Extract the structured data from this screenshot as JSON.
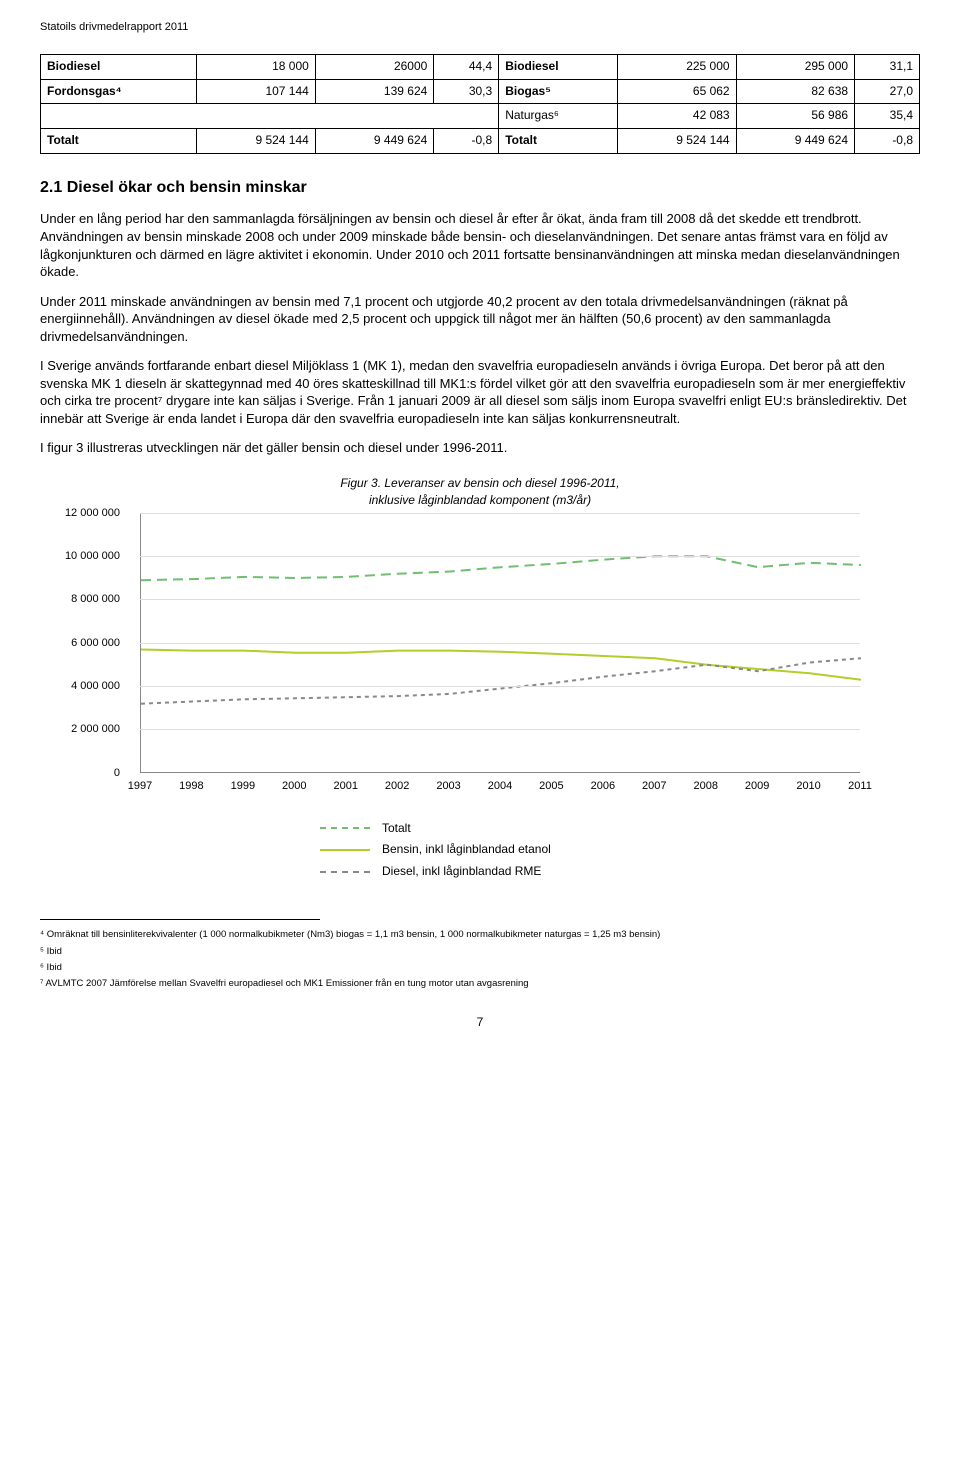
{
  "header": "Statoils drivmedelrapport 2011",
  "table": {
    "rows": [
      {
        "label": "Biodiesel",
        "c1": "18 000",
        "c2": "26000",
        "c3": "44,4",
        "rlabel": "Biodiesel",
        "r1": "225 000",
        "r2": "295 000",
        "r3": "31,1",
        "bold": true
      },
      {
        "label": "Fordonsgas⁴",
        "c1": "107 144",
        "c2": "139 624",
        "c3": "30,3",
        "rlabel": "Biogas⁵",
        "r1": "65 062",
        "r2": "82 638",
        "r3": "27,0",
        "bold": true
      },
      {
        "label": "",
        "c1": "",
        "c2": "",
        "c3": "",
        "rlabel": "Naturgas⁶",
        "r1": "42 083",
        "r2": "56 986",
        "r3": "35,4",
        "bold": false,
        "emptyleft": true
      },
      {
        "label": "Totalt",
        "c1": "9 524 144",
        "c2": "9 449 624",
        "c3": "-0,8",
        "rlabel": "Totalt",
        "r1": "9 524 144",
        "r2": "9 449 624",
        "r3": "-0,8",
        "bold": true
      }
    ]
  },
  "section": {
    "heading": "2.1   Diesel ökar och bensin minskar",
    "p1": "Under en lång period har den sammanlagda försäljningen av bensin och diesel år efter år ökat, ända fram till 2008 då det skedde ett trendbrott. Användningen av bensin minskade 2008 och under 2009 minskade både bensin- och dieselanvändningen. Det senare antas främst vara en följd av lågkonjunkturen och därmed en lägre aktivitet i ekonomin. Under 2010 och 2011 fortsatte bensinanvändningen att minska medan dieselanvändningen ökade.",
    "p2": "Under 2011 minskade användningen av bensin med 7,1 procent och utgjorde 40,2 procent av den totala drivmedelsanvändningen (räknat på energiinnehåll). Användningen av diesel ökade med 2,5 procent och uppgick till något mer än hälften (50,6 procent) av den sammanlagda drivmedelsanvändningen.",
    "p3": "I Sverige används fortfarande enbart diesel Miljöklass 1 (MK 1), medan den svavelfria europadieseln används i övriga Europa. Det beror på att den svenska MK 1 dieseln är skattegynnad med 40 öres skatteskillnad till MK1:s fördel vilket gör att den svavelfria europadieseln som är mer energieffektiv och cirka tre procent⁷ drygare inte kan säljas i Sverige. Från 1 januari 2009 är all diesel som säljs inom Europa svavelfri enligt EU:s bränsledirektiv. Det innebär att Sverige är enda landet i Europa där den svavelfria europadieseln inte kan säljas konkurrensneutralt.",
    "p4": "I figur 3 illustreras utvecklingen när det gäller bensin och diesel under 1996-2011."
  },
  "chart": {
    "title_line1": "Figur 3. Leveranser av bensin och diesel 1996-2011,",
    "title_line2": "inklusive låginblandad komponent (m3/år)",
    "y_ticks": [
      "0",
      "2 000 000",
      "4 000 000",
      "6 000 000",
      "8 000 000",
      "10 000 000",
      "12 000 000"
    ],
    "y_max": 12000000,
    "x_labels": [
      "1997",
      "1998",
      "1999",
      "2000",
      "2001",
      "2002",
      "2003",
      "2004",
      "2005",
      "2006",
      "2007",
      "2008",
      "2009",
      "2010",
      "2011"
    ],
    "series": {
      "totalt": {
        "label": "Totalt",
        "color": "#6fbf6f",
        "dash": "10,6",
        "width": 2,
        "values": [
          8900000,
          8950000,
          9050000,
          9000000,
          9050000,
          9200000,
          9300000,
          9500000,
          9650000,
          9850000,
          10000000,
          10000000,
          9500000,
          9700000,
          9600000
        ]
      },
      "bensin": {
        "label": "Bensin, inkl låginblandad etanol",
        "color": "#b5cc29",
        "dash": "",
        "width": 2,
        "values": [
          5700000,
          5650000,
          5650000,
          5550000,
          5550000,
          5650000,
          5650000,
          5600000,
          5500000,
          5400000,
          5300000,
          5000000,
          4800000,
          4600000,
          4300000
        ]
      },
      "diesel": {
        "label": "Diesel, inkl låginblandad RME",
        "color": "#888888",
        "dash": "4,4",
        "width": 2,
        "values": [
          3200000,
          3300000,
          3400000,
          3450000,
          3500000,
          3550000,
          3650000,
          3900000,
          4150000,
          4450000,
          4700000,
          5000000,
          4700000,
          5100000,
          5300000
        ]
      }
    }
  },
  "footnotes": {
    "f4": "⁴ Omräknat till bensinliterekvivalenter (1 000 normalkubikmeter (Nm3) biogas = 1,1 m3 bensin, 1 000 normalkubikmeter naturgas = 1,25 m3 bensin)",
    "f5": "⁵ Ibid",
    "f6": "⁶ Ibid",
    "f7": "⁷ AVLMTC 2007 Jämförelse mellan Svavelfri europadiesel och MK1 Emissioner från en tung motor utan avgasrening"
  },
  "pagenum": "7"
}
